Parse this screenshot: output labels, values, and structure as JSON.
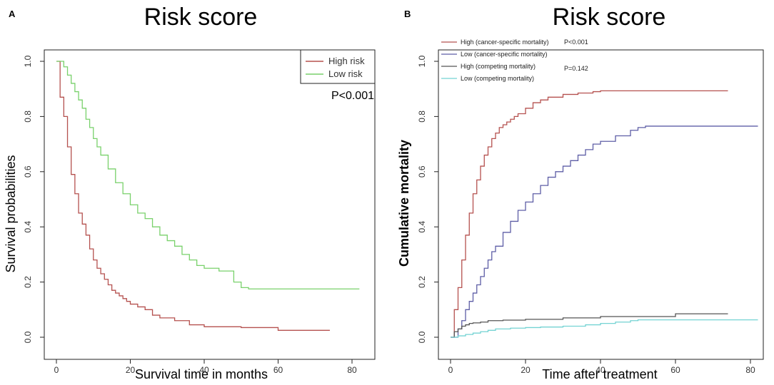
{
  "chart_data": [
    {
      "type": "line",
      "panel": "A",
      "title": "Risk score",
      "xlabel": "Survival time in months",
      "ylabel": "Survival probabilities",
      "xlim": [
        0,
        85
      ],
      "ylim": [
        0,
        1.0
      ],
      "xticks": [
        "0",
        "20",
        "40",
        "60",
        "80"
      ],
      "yticks": [
        "0.0",
        "0.2",
        "0.4",
        "0.6",
        "0.8",
        "1.0"
      ],
      "pvalue": "P<0.001",
      "legend_position": "top-right",
      "series": [
        {
          "name": "High risk",
          "color": "#b5514f",
          "x": [
            0,
            1,
            2,
            3,
            4,
            5,
            6,
            7,
            8,
            9,
            10,
            11,
            12,
            13,
            14,
            15,
            16,
            17,
            18,
            19,
            20,
            22,
            24,
            26,
            28,
            32,
            36,
            40,
            50,
            60,
            74
          ],
          "y": [
            1.0,
            0.87,
            0.8,
            0.69,
            0.59,
            0.52,
            0.45,
            0.41,
            0.37,
            0.32,
            0.28,
            0.25,
            0.23,
            0.21,
            0.19,
            0.17,
            0.16,
            0.15,
            0.14,
            0.13,
            0.12,
            0.11,
            0.1,
            0.08,
            0.07,
            0.06,
            0.045,
            0.038,
            0.035,
            0.025,
            0.025
          ]
        },
        {
          "name": "Low risk",
          "color": "#79d16b",
          "x": [
            0,
            2,
            3,
            4,
            5,
            6,
            7,
            8,
            9,
            10,
            11,
            12,
            14,
            16,
            18,
            20,
            22,
            24,
            26,
            28,
            30,
            32,
            34,
            36,
            38,
            40,
            44,
            48,
            50,
            52,
            60,
            70,
            82
          ],
          "y": [
            1.0,
            0.98,
            0.95,
            0.92,
            0.89,
            0.86,
            0.83,
            0.79,
            0.76,
            0.72,
            0.69,
            0.66,
            0.61,
            0.56,
            0.52,
            0.48,
            0.45,
            0.43,
            0.4,
            0.37,
            0.35,
            0.33,
            0.3,
            0.28,
            0.26,
            0.25,
            0.24,
            0.2,
            0.18,
            0.175,
            0.175,
            0.175,
            0.175
          ]
        }
      ]
    },
    {
      "type": "line",
      "panel": "B",
      "title": "Risk score",
      "xlabel": "Time after treatment",
      "ylabel": "Cumulative mortality",
      "xlim": [
        0,
        85
      ],
      "ylim": [
        0,
        1.0
      ],
      "xticks": [
        "0",
        "20",
        "40",
        "60",
        "80"
      ],
      "yticks": [
        "0.0",
        "0.2",
        "0.4",
        "0.6",
        "0.8",
        "1.0"
      ],
      "pvalues": [
        "P<0.001",
        "P=0.142"
      ],
      "legend_position": "top-left",
      "series": [
        {
          "name": "High (cancer-specific mortality)",
          "color": "#b5514f",
          "x": [
            0,
            1,
            2,
            3,
            4,
            5,
            6,
            7,
            8,
            9,
            10,
            11,
            12,
            13,
            14,
            15,
            16,
            17,
            18,
            20,
            22,
            24,
            26,
            28,
            30,
            34,
            38,
            40,
            50,
            60,
            74
          ],
          "y": [
            0.0,
            0.1,
            0.18,
            0.28,
            0.37,
            0.45,
            0.52,
            0.57,
            0.62,
            0.66,
            0.69,
            0.72,
            0.74,
            0.76,
            0.77,
            0.78,
            0.79,
            0.8,
            0.81,
            0.83,
            0.85,
            0.86,
            0.87,
            0.87,
            0.88,
            0.885,
            0.89,
            0.893,
            0.893,
            0.893,
            0.893
          ]
        },
        {
          "name": "Low (cancer-specific mortality)",
          "color": "#5e5ea6",
          "x": [
            0,
            2,
            3,
            4,
            5,
            6,
            7,
            8,
            9,
            10,
            11,
            12,
            14,
            16,
            18,
            20,
            22,
            24,
            26,
            28,
            30,
            32,
            34,
            36,
            38,
            40,
            44,
            48,
            50,
            52,
            60,
            70,
            82
          ],
          "y": [
            0.0,
            0.03,
            0.06,
            0.1,
            0.13,
            0.16,
            0.19,
            0.22,
            0.25,
            0.28,
            0.31,
            0.33,
            0.38,
            0.42,
            0.46,
            0.49,
            0.52,
            0.55,
            0.58,
            0.6,
            0.62,
            0.64,
            0.66,
            0.68,
            0.7,
            0.71,
            0.73,
            0.75,
            0.76,
            0.765,
            0.765,
            0.765,
            0.765
          ]
        },
        {
          "name": "High (competing mortality)",
          "color": "#555555",
          "x": [
            0,
            1,
            2,
            3,
            4,
            5,
            6,
            8,
            10,
            14,
            20,
            25,
            30,
            40,
            50,
            60,
            74
          ],
          "y": [
            0.0,
            0.02,
            0.03,
            0.04,
            0.045,
            0.05,
            0.052,
            0.055,
            0.06,
            0.062,
            0.065,
            0.065,
            0.07,
            0.075,
            0.075,
            0.085,
            0.085
          ]
        },
        {
          "name": "Low (competing mortality)",
          "color": "#74d3d3",
          "x": [
            0,
            2,
            4,
            6,
            8,
            10,
            12,
            16,
            20,
            24,
            30,
            36,
            40,
            44,
            48,
            50,
            60,
            70,
            82
          ],
          "y": [
            0.0,
            0.005,
            0.01,
            0.015,
            0.02,
            0.025,
            0.03,
            0.033,
            0.035,
            0.037,
            0.04,
            0.045,
            0.05,
            0.055,
            0.06,
            0.063,
            0.063,
            0.063,
            0.063
          ]
        }
      ]
    }
  ]
}
